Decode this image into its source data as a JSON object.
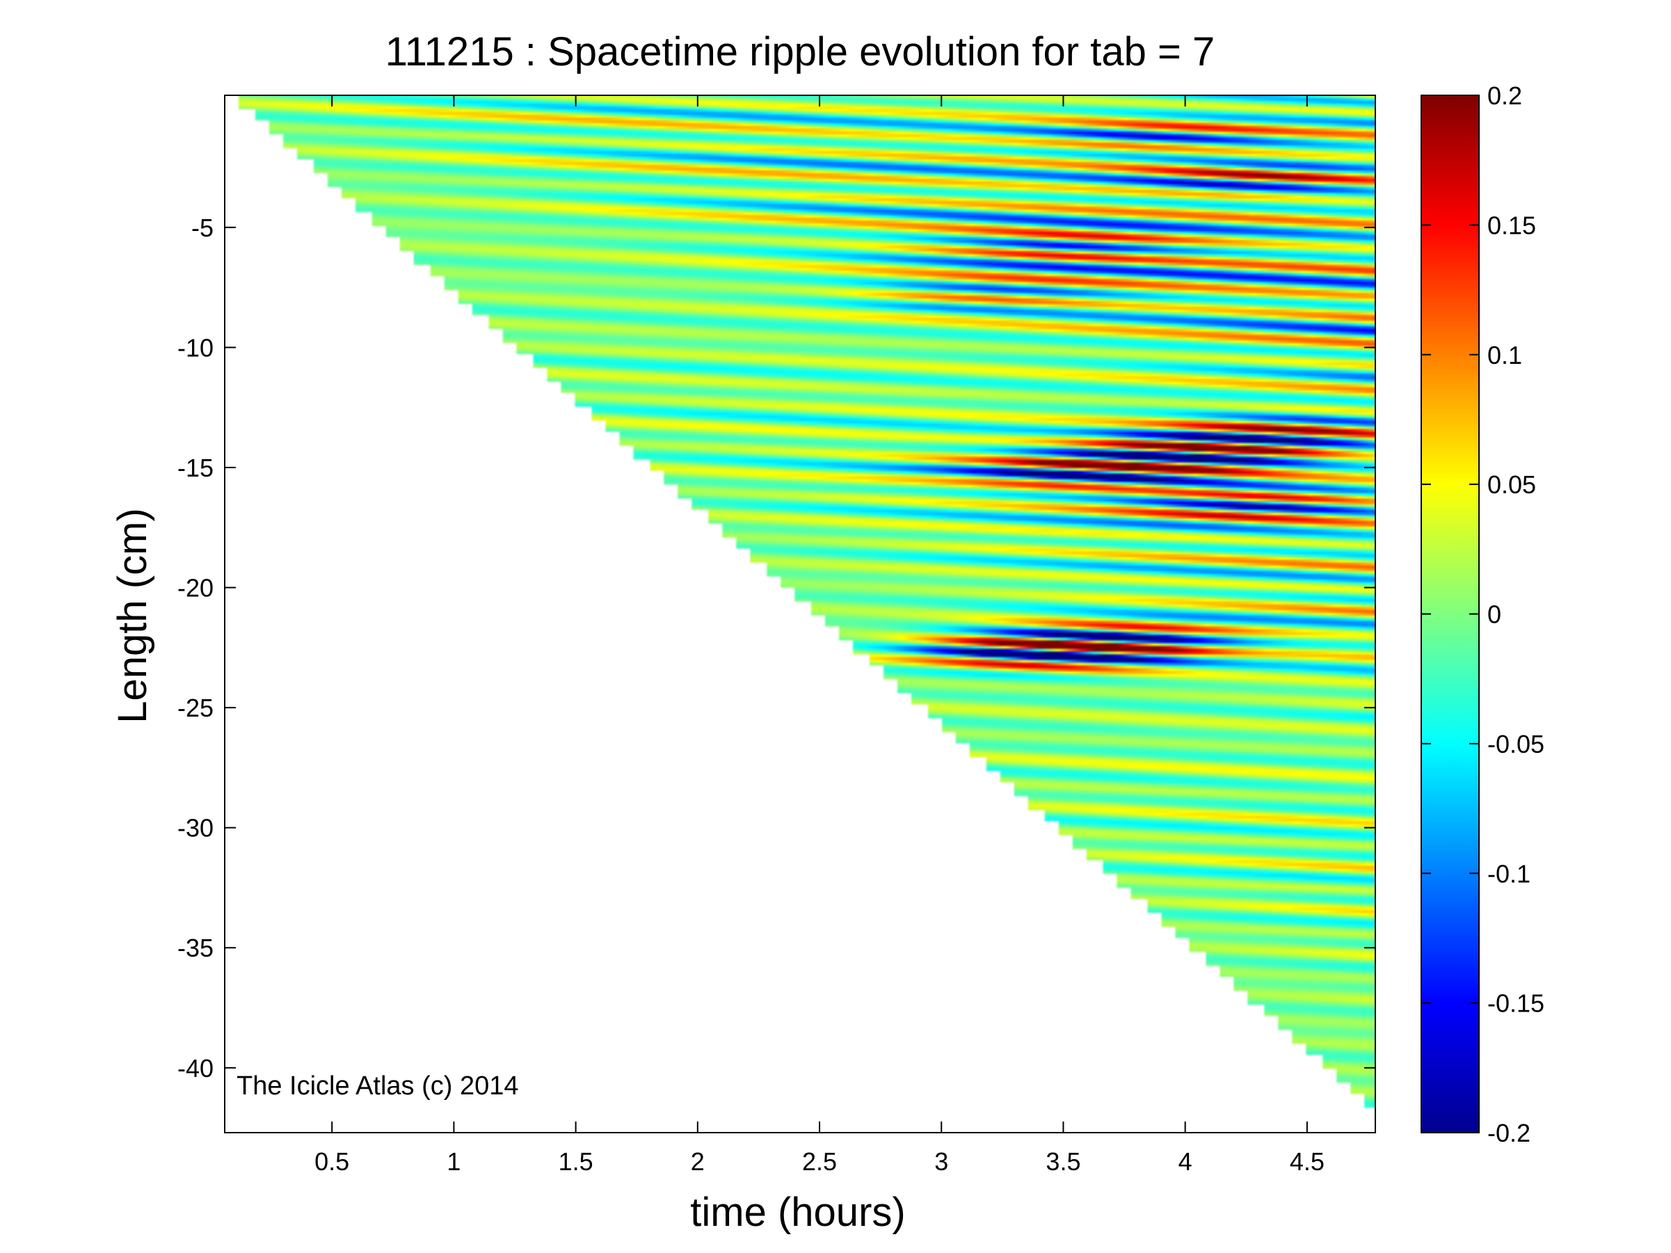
{
  "chart_data": {
    "type": "heatmap",
    "title": "111215 : Spacetime ripple evolution for tab = 7",
    "xlabel": "time (hours)",
    "ylabel": "Length (cm)",
    "xlim": [
      0.06,
      4.78
    ],
    "ylim": [
      -42.7,
      0.5
    ],
    "xticks": [
      0.5,
      1,
      1.5,
      2,
      2.5,
      3,
      3.5,
      4,
      4.5
    ],
    "xtick_labels": [
      "0.5",
      "1",
      "1.5",
      "2",
      "2.5",
      "3",
      "3.5",
      "4",
      "4.5"
    ],
    "yticks": [
      -5,
      -10,
      -15,
      -20,
      -25,
      -30,
      -35,
      -40
    ],
    "ytick_labels": [
      "-5",
      "-10",
      "-15",
      "-20",
      "-25",
      "-30",
      "-35",
      "-40"
    ],
    "colorbar": {
      "colormap": "jet",
      "clim": [
        -0.2,
        0.2
      ],
      "ticks": [
        0.2,
        0.15,
        0.1,
        0.05,
        0,
        -0.05,
        -0.1,
        -0.15,
        -0.2
      ],
      "tick_labels": [
        "0.2",
        "0.15",
        "0.1",
        "0.05",
        "0",
        "-0.05",
        "-0.1",
        "-0.15",
        "-0.2"
      ]
    },
    "growth_front": {
      "time_hours": [
        0.06,
        4.78
      ],
      "length_cm": [
        0.5,
        -42.0
      ]
    },
    "ripples": {
      "wavelength_cm": 0.95,
      "drift_cm_per_hour": 0.5,
      "base_amplitude": 0.03,
      "amplitude_growth_per_hour": 0.021
    },
    "hotspots": [
      {
        "t": 4.05,
        "y": -14.3,
        "amp": 0.22
      },
      {
        "t": 3.6,
        "y": -15.2,
        "amp": 0.17
      },
      {
        "t": 4.3,
        "y": -16.5,
        "amp": 0.15
      },
      {
        "t": 3.45,
        "y": -22.7,
        "amp": 0.24
      },
      {
        "t": 3.7,
        "y": -22.1,
        "amp": 0.16
      },
      {
        "t": 3.5,
        "y": -5.8,
        "amp": 0.12
      },
      {
        "t": 4.3,
        "y": -2.9,
        "amp": 0.13
      },
      {
        "t": 3.9,
        "y": -1.2,
        "amp": 0.1
      },
      {
        "t": 4.4,
        "y": -13.5,
        "amp": 0.13
      },
      {
        "t": 3.2,
        "y": -7.8,
        "amp": 0.09
      }
    ],
    "annotation": "The Icicle Atlas (c) 2014"
  }
}
